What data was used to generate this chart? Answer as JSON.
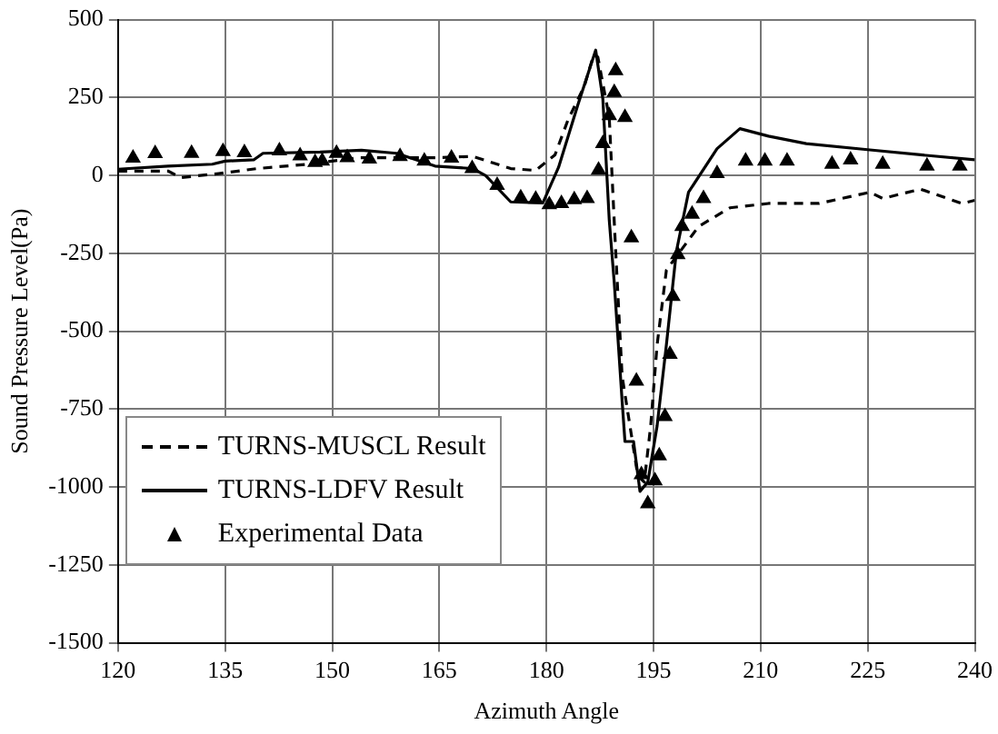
{
  "chart_data": {
    "type": "line",
    "xlabel": "Azimuth Angle",
    "ylabel": "Sound Pressure Level(Pa)",
    "xlim": [
      120,
      240
    ],
    "xticks": [
      120,
      135,
      150,
      165,
      180,
      195,
      210,
      225,
      240
    ],
    "ylim": [
      -1500,
      500
    ],
    "yticks": [
      -1500,
      -1250,
      -1000,
      -750,
      -500,
      -250,
      0,
      250,
      500
    ],
    "grid": true,
    "legend": "bottom left",
    "series": [
      {
        "name": "TURNS-MUSCL Result",
        "color": "#000000",
        "line_style": "dashed",
        "marker": "none",
        "x": [
          120,
          127,
          128.8,
          134.1,
          139.5,
          146.6,
          153.7,
          164.4,
          169.7,
          175,
          178.5,
          181.2,
          183,
          185.3,
          186.6,
          187.2,
          188.8,
          189.7,
          190.6,
          192.8,
          193.7,
          194.6,
          195.5,
          196.8,
          201.3,
          205.7,
          211.1,
          218.2,
          225.3,
          227.1,
          232.4,
          238.2,
          240
        ],
        "values": [
          14,
          14,
          -7,
          6,
          22,
          36,
          57,
          57,
          61,
          22,
          16,
          66,
          177,
          286,
          386,
          380,
          186,
          -244,
          -644,
          -964,
          -984,
          -804,
          -544,
          -304,
          -164,
          -104,
          -90,
          -90,
          -54,
          -74,
          -44,
          -90,
          -80
        ]
      },
      {
        "name": "TURNS-LDFV Result",
        "color": "#000000",
        "line_style": "solid",
        "marker": "none",
        "x": [
          120,
          127,
          133.2,
          135,
          139,
          140.3,
          148.3,
          154.1,
          159,
          164.4,
          169.7,
          171.5,
          175,
          179.5,
          181.7,
          184.4,
          186.9,
          187.9,
          188.8,
          189.5,
          190.6,
          191,
          192.2,
          193.1,
          194.2,
          195.5,
          196.8,
          198.2,
          199.9,
          203.9,
          207.1,
          211.1,
          216.4,
          225.3,
          232.4,
          240
        ],
        "values": [
          20,
          30,
          36,
          46,
          50,
          71,
          75,
          81,
          71,
          30,
          22,
          -1,
          -85,
          -88,
          26,
          226,
          402,
          246,
          -144,
          -344,
          -724,
          -854,
          -854,
          -1014,
          -984,
          -804,
          -544,
          -244,
          -54,
          86,
          150,
          126,
          102,
          82,
          66,
          50
        ]
      },
      {
        "name": "Experimental Data",
        "type": "scatter",
        "color": "#000000",
        "marker": "triangle",
        "x": [
          122.1,
          125.2,
          130.3,
          134.7,
          137.7,
          142.6,
          145.5,
          147.6,
          148.6,
          150.6,
          152.1,
          155.2,
          159.5,
          162.9,
          166.7,
          169.6,
          173.1,
          176.4,
          178.5,
          180.4,
          182.1,
          183.9,
          185.7,
          187.3,
          187.9,
          188.8,
          189.5,
          189.7,
          191,
          191.9,
          192.6,
          193.3,
          194.2,
          195.2,
          195.8,
          196.6,
          197.3,
          197.7,
          198.4,
          199,
          200.4,
          202,
          203.9,
          207.9,
          210.6,
          213.7,
          220,
          222.6,
          227.1,
          233.3,
          237.9
        ],
        "values": [
          56,
          70,
          71,
          77,
          73,
          79,
          63,
          42,
          46,
          71,
          57,
          53,
          61,
          46,
          56,
          22,
          -32,
          -72,
          -76,
          -94,
          -90,
          -78,
          -74,
          17,
          102,
          192,
          266,
          336,
          186,
          -200,
          -660,
          -960,
          -1054,
          -980,
          -900,
          -774,
          -574,
          -388,
          -254,
          -164,
          -124,
          -74,
          6,
          46,
          46,
          46,
          36,
          50,
          36,
          30,
          30
        ]
      }
    ]
  }
}
